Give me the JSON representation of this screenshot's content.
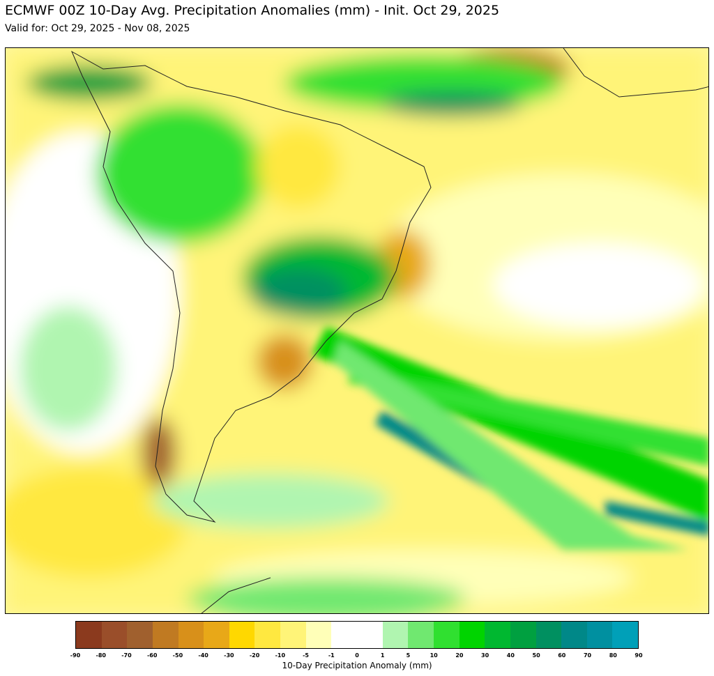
{
  "title": "ECMWF 00Z 10-Day Avg. Precipitation Anomalies (mm) - Init. Oct 29, 2025",
  "subtitle": "Valid for: Oct 29, 2025 - Nov 08, 2025",
  "colorbar": {
    "label": "10-Day Precipitation Anomaly (mm)",
    "ticks": [
      "-90",
      "-80",
      "-70",
      "-60",
      "-50",
      "-40",
      "-30",
      "-20",
      "-10",
      "-5",
      "-1",
      "0",
      "1",
      "5",
      "10",
      "20",
      "30",
      "40",
      "50",
      "60",
      "70",
      "80",
      "90"
    ],
    "colors": [
      "#8b3a1e",
      "#9a4e2a",
      "#a0602e",
      "#c07a22",
      "#d8901a",
      "#e8a818",
      "#ffd800",
      "#ffe840",
      "#fff478",
      "#ffffb8",
      "#ffffff",
      "#ffffff",
      "#b0f5b0",
      "#70e870",
      "#30e030",
      "#00d400",
      "#00b830",
      "#00a040",
      "#009060",
      "#008888",
      "#0090a0",
      "#00a0b8"
    ]
  },
  "map": {
    "region": "South America and adjacent oceans"
  }
}
